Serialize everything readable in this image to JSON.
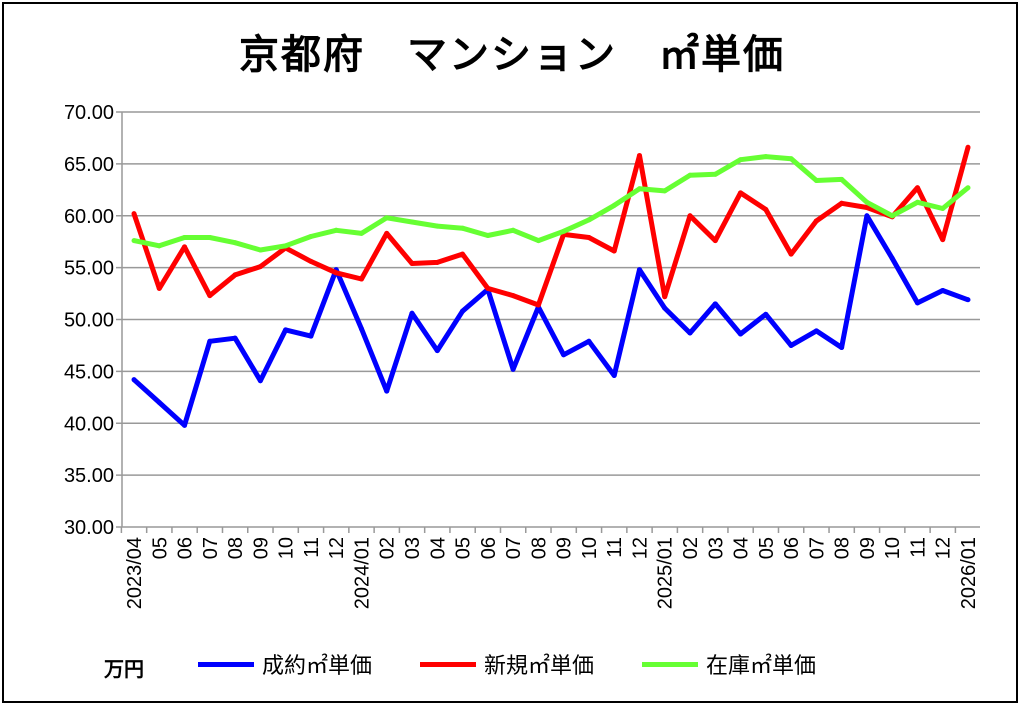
{
  "chart_data": {
    "type": "line",
    "title": "京都府　マンション　㎡単価",
    "ylabel": "万円",
    "ylim": [
      30,
      70
    ],
    "yticks": [
      "30.00",
      "35.00",
      "40.00",
      "45.00",
      "50.00",
      "55.00",
      "60.00",
      "65.00",
      "70.00"
    ],
    "grid": true,
    "legend_placement": "bottom",
    "categories": [
      "2023/04",
      "05",
      "06",
      "07",
      "08",
      "09",
      "10",
      "11",
      "12",
      "2024/01",
      "02",
      "03",
      "04",
      "05",
      "06",
      "07",
      "08",
      "09",
      "10",
      "11",
      "12",
      "2025/01",
      "02",
      "03",
      "04",
      "05",
      "06",
      "07",
      "08",
      "09",
      "10",
      "11",
      "12",
      "2026/01"
    ],
    "series": [
      {
        "name": "成約㎡単価",
        "color": "#0000ff",
        "values": [
          44.2,
          42.0,
          39.8,
          47.9,
          48.2,
          44.1,
          49.0,
          48.4,
          54.8,
          49.1,
          43.1,
          50.6,
          47.0,
          50.8,
          52.9,
          45.2,
          51.2,
          46.6,
          47.9,
          44.6,
          54.8,
          51.1,
          48.7,
          51.5,
          48.6,
          50.5,
          47.5,
          48.9,
          47.3,
          60.0,
          55.9,
          51.6,
          52.8,
          51.9
        ]
      },
      {
        "name": "新規㎡単価",
        "color": "#ff0000",
        "values": [
          60.2,
          53.0,
          57.0,
          52.3,
          54.3,
          55.1,
          56.9,
          55.6,
          54.5,
          53.9,
          58.3,
          55.4,
          55.5,
          56.3,
          53.0,
          52.3,
          51.4,
          58.2,
          57.9,
          56.6,
          65.8,
          52.2,
          60.0,
          57.6,
          62.2,
          60.6,
          56.3,
          59.5,
          61.2,
          60.8,
          59.9,
          62.7,
          57.7,
          66.6
        ]
      },
      {
        "name": "在庫㎡単価",
        "color": "#66ff33",
        "values": [
          57.6,
          57.1,
          57.9,
          57.9,
          57.4,
          56.7,
          57.1,
          58.0,
          58.6,
          58.3,
          59.8,
          59.4,
          59.0,
          58.8,
          58.1,
          58.6,
          57.6,
          58.5,
          59.6,
          61.0,
          62.6,
          62.4,
          63.9,
          64.0,
          65.4,
          65.7,
          65.5,
          63.4,
          63.5,
          61.3,
          60.0,
          61.3,
          60.7,
          62.7
        ]
      }
    ]
  }
}
